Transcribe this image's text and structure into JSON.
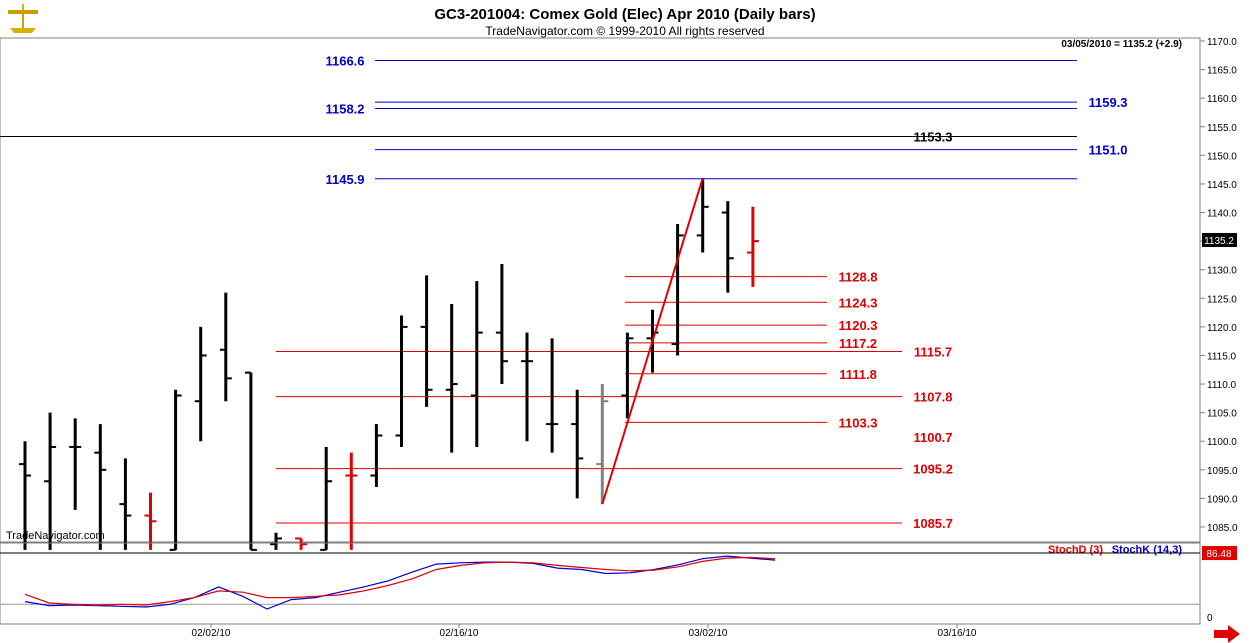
{
  "header": {
    "title": "GC3-201004:  Comex Gold (Elec) Apr 2010  (Daily bars)",
    "copyright": "TradeNavigator.com © 1999-2010 All rights reserved",
    "last_quote": "03/05/2010 = 1135.2 (+2.9)",
    "watermark": "TradeNavigator.com"
  },
  "icons": {
    "logo": "gold-scales-logo-icon",
    "scroll": "right-arrow-icon"
  },
  "colors": {
    "up_bar": "#000000",
    "red_bar": "#e00000",
    "blue_level": "#0000cc",
    "red_level": "#e00000",
    "stochK": "#0000cc",
    "stochD": "#e00000"
  },
  "chart_data": [
    {
      "type": "ohlc",
      "title": "GC3-201004:  Comex Gold (Elec) Apr 2010  (Daily bars)",
      "ylim": [
        1081,
        1172
      ],
      "y_ticks": [
        "1170.0",
        "1165.0",
        "1160.0",
        "1155.0",
        "1150.0",
        "1145.0",
        "1140.0",
        "1135.0",
        "1130.0",
        "1125.0",
        "1120.0",
        "1115.0",
        "1110.0",
        "1105.0",
        "1100.0",
        "1095.0",
        "1090.0",
        "1085.0"
      ],
      "x_ticks": [
        "02/02/10",
        "02/16/10",
        "03/02/10",
        "03/16/10"
      ],
      "last_price_label": "1135.2",
      "bars": [
        {
          "o": 1096,
          "h": 1100,
          "l": 1081,
          "c": 1094,
          "color": "black"
        },
        {
          "o": 1093,
          "h": 1105,
          "l": 1081,
          "c": 1099,
          "color": "black"
        },
        {
          "o": 1099,
          "h": 1104,
          "l": 1088,
          "c": 1099,
          "color": "black"
        },
        {
          "o": 1098,
          "h": 1103,
          "l": 1081,
          "c": 1095,
          "color": "black"
        },
        {
          "o": 1089,
          "h": 1097,
          "l": 1081,
          "c": 1087,
          "color": "black"
        },
        {
          "o": 1087,
          "h": 1091,
          "l": 1081,
          "c": 1086,
          "color": "red"
        },
        {
          "o": 1081,
          "h": 1109,
          "l": 1081,
          "c": 1108,
          "color": "black"
        },
        {
          "o": 1107,
          "h": 1120,
          "l": 1100,
          "c": 1115,
          "color": "black"
        },
        {
          "o": 1116,
          "h": 1126,
          "l": 1107,
          "c": 1111,
          "color": "black"
        },
        {
          "o": 1112,
          "h": 1112,
          "l": 1081,
          "c": 1081,
          "color": "black"
        },
        {
          "o": 1082,
          "h": 1084,
          "l": 1081,
          "c": 1083,
          "color": "black"
        },
        {
          "o": 1083,
          "h": 1083,
          "l": 1081,
          "c": 1082,
          "color": "red"
        },
        {
          "o": 1081,
          "h": 1099,
          "l": 1081,
          "c": 1093,
          "color": "black"
        },
        {
          "o": 1094,
          "h": 1098,
          "l": 1081,
          "c": 1094,
          "color": "red"
        },
        {
          "o": 1094,
          "h": 1103,
          "l": 1092,
          "c": 1101,
          "color": "black"
        },
        {
          "o": 1101,
          "h": 1122,
          "l": 1099,
          "c": 1120,
          "color": "black"
        },
        {
          "o": 1120,
          "h": 1129,
          "l": 1106,
          "c": 1109,
          "color": "black"
        },
        {
          "o": 1109,
          "h": 1124,
          "l": 1098,
          "c": 1110,
          "color": "black"
        },
        {
          "o": 1108,
          "h": 1128,
          "l": 1099,
          "c": 1119,
          "color": "black"
        },
        {
          "o": 1119,
          "h": 1131,
          "l": 1110,
          "c": 1114,
          "color": "black"
        },
        {
          "o": 1114,
          "h": 1119,
          "l": 1100,
          "c": 1114,
          "color": "black"
        },
        {
          "o": 1103,
          "h": 1118,
          "l": 1098,
          "c": 1103,
          "color": "black"
        },
        {
          "o": 1103,
          "h": 1109,
          "l": 1090,
          "c": 1097,
          "color": "black"
        },
        {
          "o": 1096,
          "h": 1110,
          "l": 1089,
          "c": 1107,
          "color": "gray"
        },
        {
          "o": 1108,
          "h": 1119,
          "l": 1104,
          "c": 1118,
          "color": "black"
        },
        {
          "o": 1118,
          "h": 1123,
          "l": 1112,
          "c": 1119,
          "color": "black"
        },
        {
          "o": 1117,
          "h": 1138,
          "l": 1115,
          "c": 1136,
          "color": "black"
        },
        {
          "o": 1136,
          "h": 1146,
          "l": 1133,
          "c": 1141,
          "color": "black"
        },
        {
          "o": 1140,
          "h": 1142,
          "l": 1126,
          "c": 1132,
          "color": "black"
        },
        {
          "o": 1133,
          "h": 1141,
          "l": 1127,
          "c": 1135,
          "color": "red"
        }
      ],
      "levels": [
        {
          "value": "1166.6",
          "color": "blue",
          "label_side": "left"
        },
        {
          "value": "1159.3",
          "color": "blue",
          "label_side": "right"
        },
        {
          "value": "1158.2",
          "color": "blue",
          "label_side": "left"
        },
        {
          "value": "1153.3",
          "color": "black",
          "label_side": "right"
        },
        {
          "value": "1151.0",
          "color": "blue",
          "label_side": "right"
        },
        {
          "value": "1145.9",
          "color": "blue",
          "label_side": "left"
        },
        {
          "value": "1128.8",
          "color": "red",
          "label_side": "right"
        },
        {
          "value": "1124.3",
          "color": "red",
          "label_side": "right"
        },
        {
          "value": "1120.3",
          "color": "red",
          "label_side": "right"
        },
        {
          "value": "1117.2",
          "color": "red",
          "label_side": "right"
        },
        {
          "value": "1115.7",
          "color": "red",
          "label_side": "right"
        },
        {
          "value": "1111.8",
          "color": "red",
          "label_side": "right"
        },
        {
          "value": "1107.8",
          "color": "red",
          "label_side": "right"
        },
        {
          "value": "1103.3",
          "color": "red",
          "label_side": "right"
        },
        {
          "value": "1100.7",
          "color": "red",
          "label_side": "right"
        },
        {
          "value": "1095.2",
          "color": "red",
          "label_side": "right"
        },
        {
          "value": "1085.7",
          "color": "red",
          "label_side": "right"
        }
      ],
      "trend_line": {
        "from_price": 1089,
        "to_price": 1146
      }
    },
    {
      "type": "line",
      "legend": [
        "StochD (3)",
        "StochK (14,3)"
      ],
      "ylim": [
        0,
        100
      ],
      "y_ticks": [
        "0"
      ],
      "last_value_label": "86.48",
      "series": [
        {
          "name": "StochK (14,3)",
          "color": "blue",
          "values": [
            14,
            8,
            9,
            8,
            7,
            6,
            10,
            20,
            36,
            22,
            3,
            17,
            20,
            28,
            36,
            45,
            58,
            70,
            72,
            73,
            73,
            71,
            64,
            62,
            56,
            57,
            62,
            69,
            78,
            82,
            79,
            76
          ]
        },
        {
          "name": "StochD (3)",
          "color": "red",
          "values": [
            25,
            12,
            10,
            9,
            10,
            9,
            14,
            20,
            30,
            28,
            20,
            20,
            22,
            24,
            30,
            38,
            48,
            62,
            68,
            72,
            73,
            72,
            68,
            65,
            62,
            60,
            61,
            66,
            74,
            79,
            80,
            78
          ]
        }
      ]
    }
  ]
}
